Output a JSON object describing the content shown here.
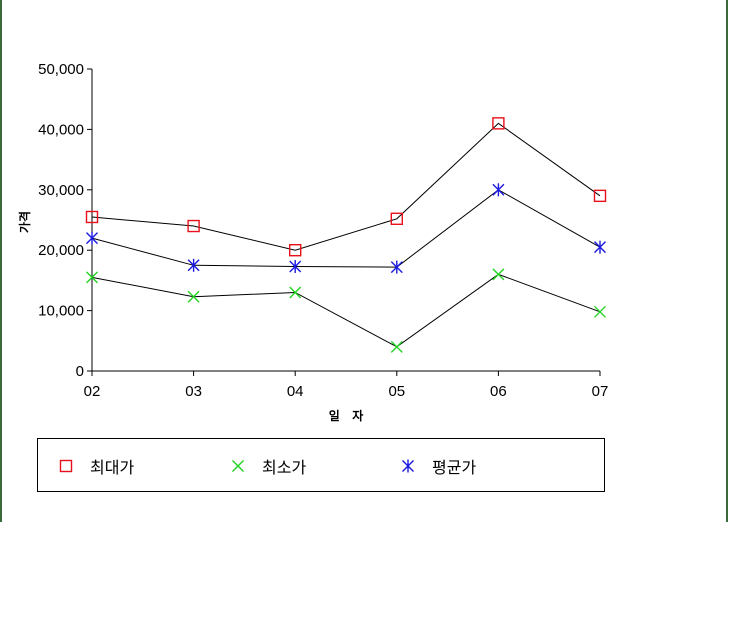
{
  "chart_data": {
    "type": "line",
    "categories": [
      "02",
      "03",
      "04",
      "05",
      "06",
      "07"
    ],
    "xlabel": "일 자",
    "ylabel": "가격",
    "ylim": [
      0,
      50000
    ],
    "yticks": [
      0,
      10000,
      20000,
      30000,
      40000,
      50000
    ],
    "ytick_labels": [
      "0",
      "10,000",
      "20,000",
      "30,000",
      "40,000",
      "50,000"
    ],
    "grid": false,
    "legend_position": "bottom",
    "line_color": "#000000",
    "series": [
      {
        "name": "최대가",
        "marker": "square",
        "color": "#e8101a",
        "values": [
          25500,
          24000,
          20000,
          25200,
          41000,
          29000
        ]
      },
      {
        "name": "최소가",
        "marker": "x",
        "color": "#22d422",
        "values": [
          15500,
          12300,
          13000,
          4000,
          16000,
          9800
        ]
      },
      {
        "name": "평균가",
        "marker": "asterisk",
        "color": "#1a1ae0",
        "values": [
          22000,
          17500,
          17300,
          17200,
          30000,
          20500
        ]
      }
    ]
  }
}
